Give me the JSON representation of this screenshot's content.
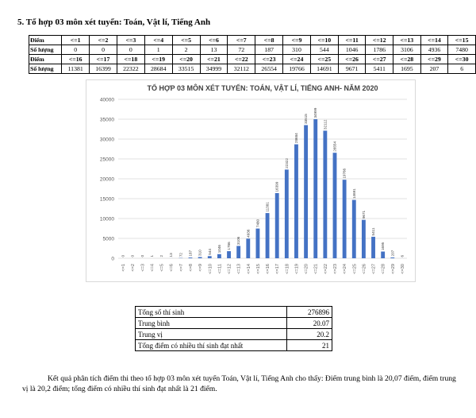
{
  "heading": "5. Tổ hợp 03 môn xét tuyển: Toán, Vật lí, Tiếng Anh",
  "score_table": {
    "row_label_score": "Điểm",
    "row_label_count": "Số lượng",
    "part1": {
      "scores": [
        "<=1",
        "<=2",
        "<=3",
        "<=4",
        "<=5",
        "<=6",
        "<=7",
        "<=8",
        "<=9",
        "<=10",
        "<=11",
        "<=12",
        "<=13",
        "<=14",
        "<=15"
      ],
      "counts": [
        "0",
        "0",
        "0",
        "1",
        "2",
        "13",
        "72",
        "187",
        "310",
        "544",
        "1046",
        "1786",
        "3106",
        "4936",
        "7480"
      ]
    },
    "part2": {
      "scores": [
        "<=16",
        "<=17",
        "<=18",
        "<=19",
        "<=20",
        "<=21",
        "<=22",
        "<=23",
        "<=24",
        "<=25",
        "<=26",
        "<=27",
        "<=28",
        "<=29",
        "<=30"
      ],
      "counts": [
        "11381",
        "16399",
        "22322",
        "28684",
        "33515",
        "34999",
        "32112",
        "26554",
        "19766",
        "14691",
        "9671",
        "5411",
        "1695",
        "207",
        "6"
      ]
    }
  },
  "chart_data": {
    "type": "bar",
    "title": "TỔ HỢP 03 MÔN XÉT TUYỂN: TOÁN, VẬT LÍ, TIẾNG ANH- NĂM 2020",
    "categories": [
      "<=1",
      "<=2",
      "<=3",
      "<=4",
      "<=5",
      "<=6",
      "<=7",
      "<=8",
      "<=9",
      "<=10",
      "<=11",
      "<=12",
      "<=13",
      "<=14",
      "<=15",
      "<=16",
      "<=17",
      "<=18",
      "<=19",
      "<=20",
      "<=21",
      "<=22",
      "<=23",
      "<=24",
      "<=25",
      "<=26",
      "<=27",
      "<=28",
      "<=29",
      "<=30"
    ],
    "values": [
      0,
      0,
      0,
      1,
      2,
      13,
      72,
      187,
      310,
      544,
      1046,
      1786,
      3106,
      4936,
      7480,
      11381,
      16399,
      22322,
      28684,
      33515,
      34999,
      32112,
      26554,
      19766,
      14691,
      9671,
      5411,
      1695,
      207,
      6
    ],
    "yticks": [
      0,
      5000,
      10000,
      15000,
      20000,
      25000,
      30000,
      35000,
      40000
    ],
    "ylim": [
      0,
      40000
    ],
    "grid": true,
    "legend": false,
    "data_labels": true,
    "bar_color": "#4472c4"
  },
  "stats": [
    {
      "label": "Tổng số thí sinh",
      "value": "276896"
    },
    {
      "label": "Trung bình",
      "value": "20.07"
    },
    {
      "label": "Trung vị",
      "value": "20.2"
    },
    {
      "label": "Tổng điểm có nhiều thí sinh đạt nhất",
      "value": "21"
    }
  ],
  "conclusion": "Kết quả phân tích điểm thi theo tổ hợp 03 môn xét tuyển Toán, Vật lí, Tiếng Anh cho thấy: Điểm trung bình là 20,07 điểm, điểm trung vị là 20,2 điểm; tổng điểm có nhiều thí sinh đạt nhất là 21 điểm."
}
